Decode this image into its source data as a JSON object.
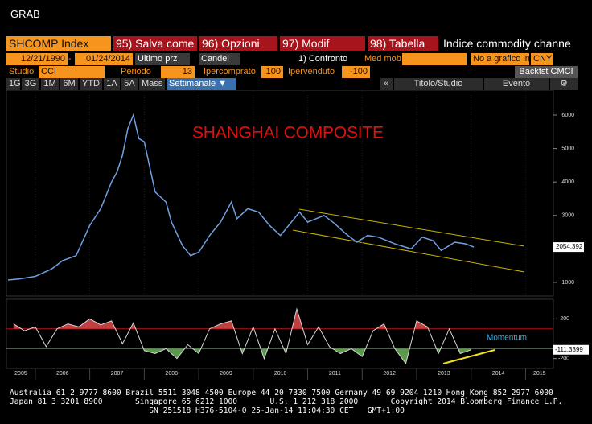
{
  "window": {
    "title": "GRAB"
  },
  "header": {
    "ticker": "SHCOMP Index",
    "actions": [
      "95) Salva come",
      "96) Opzioni",
      "97) Modif",
      "98) Tabella"
    ],
    "description": "Indice commodity channe"
  },
  "controls": {
    "start_date": "12/21/1990",
    "separator": "-",
    "end_date": "01/24/2014",
    "price_field": "Ultimo prz",
    "chart_style": "Candel",
    "compare": "1) Confronto",
    "moving_average": "Med mob",
    "lower_chart": "No a grafico infe",
    "currency": "CNY",
    "study_label": "Studio",
    "study": "CCI",
    "period_label": "Periodo",
    "period": 13,
    "overbought_label": "Ipercomprato",
    "overbought": 100,
    "oversold_label": "Ipervenduto",
    "oversold": -100,
    "backtest": "Backtst CMCI"
  },
  "tabs": {
    "ranges": [
      "1G",
      "3G",
      "1M",
      "6M",
      "YTD",
      "1A",
      "5A",
      "Mass"
    ],
    "active": "Settimanale ▼",
    "right": [
      "«",
      "Titolo/Studio",
      "Evento",
      "⚙"
    ]
  },
  "chart_data": [
    {
      "type": "line",
      "title": "SHANGHAI COMPOSITE",
      "color": "#6fa0e0",
      "x": [
        2005.5,
        2005.7,
        2006.0,
        2006.3,
        2006.5,
        2006.75,
        2007.0,
        2007.2,
        2007.4,
        2007.5,
        2007.6,
        2007.7,
        2007.8,
        2007.9,
        2008.0,
        2008.2,
        2008.4,
        2008.5,
        2008.7,
        2008.85,
        2009.0,
        2009.2,
        2009.4,
        2009.6,
        2009.7,
        2009.9,
        2010.1,
        2010.3,
        2010.5,
        2010.7,
        2010.85,
        2011.0,
        2011.3,
        2011.5,
        2011.7,
        2011.9,
        2012.1,
        2012.3,
        2012.6,
        2012.9,
        2013.1,
        2013.3,
        2013.45,
        2013.7,
        2013.9,
        2014.05
      ],
      "values": [
        1070,
        1100,
        1180,
        1400,
        1650,
        1800,
        2700,
        3200,
        4000,
        4300,
        4800,
        5600,
        6000,
        5300,
        5200,
        3700,
        3400,
        2800,
        2100,
        1800,
        1900,
        2400,
        2800,
        3400,
        2900,
        3200,
        3100,
        2700,
        2400,
        2800,
        3100,
        2800,
        3000,
        2750,
        2450,
        2200,
        2400,
        2350,
        2150,
        2000,
        2350,
        2250,
        1950,
        2200,
        2150,
        2054.392
      ],
      "xlim": [
        2005.47,
        2015.51
      ],
      "ylim": [
        590,
        6745
      ],
      "yticks": [
        1000,
        2000,
        3000,
        4000,
        5000,
        6000
      ]
    },
    {
      "type": "line",
      "annotation": "Momentum",
      "color": "#d8d8d8",
      "x": [
        2005.6,
        2005.8,
        2006.0,
        2006.2,
        2006.4,
        2006.6,
        2006.8,
        2007.0,
        2007.2,
        2007.4,
        2007.6,
        2007.8,
        2008.0,
        2008.2,
        2008.4,
        2008.6,
        2008.8,
        2009.0,
        2009.2,
        2009.4,
        2009.6,
        2009.8,
        2010.0,
        2010.2,
        2010.4,
        2010.6,
        2010.8,
        2011.0,
        2011.2,
        2011.4,
        2011.6,
        2011.8,
        2012.0,
        2012.2,
        2012.4,
        2012.6,
        2012.8,
        2013.0,
        2013.2,
        2013.4,
        2013.6,
        2013.8,
        2014.0
      ],
      "values": [
        150,
        80,
        120,
        -80,
        100,
        150,
        120,
        200,
        140,
        180,
        -50,
        160,
        -120,
        -150,
        -100,
        -200,
        -60,
        -150,
        100,
        150,
        180,
        -150,
        120,
        -200,
        100,
        -150,
        300,
        -60,
        120,
        -80,
        -150,
        -100,
        -180,
        80,
        150,
        -100,
        -250,
        180,
        120,
        -150,
        100,
        -150,
        -111.3399
      ],
      "xlim": [
        2005.47,
        2015.51
      ],
      "ylim": [
        -300,
        398
      ],
      "yticks": [
        200,
        -200
      ],
      "xticks": [
        2005,
        2006,
        2007,
        2008,
        2009,
        2010,
        2011,
        2012,
        2013,
        2014,
        2015
      ]
    }
  ],
  "footer": [
    "Australia 61 2 9777 8600 Brazil 5511 3048 4500 Europe 44 20 7330 7500 Germany 49 69 9204 1210 Hong Kong 852 2977 6000",
    "Japan 81 3 3201 8900       Singapore 65 6212 1000       U.S. 1 212 318 2000       Copyright 2014 Bloomberg Finance L.P.",
    "                              SN 251518 H376-5104-0 25-Jan-14 11:04:30 CET   GMT+1:00"
  ]
}
